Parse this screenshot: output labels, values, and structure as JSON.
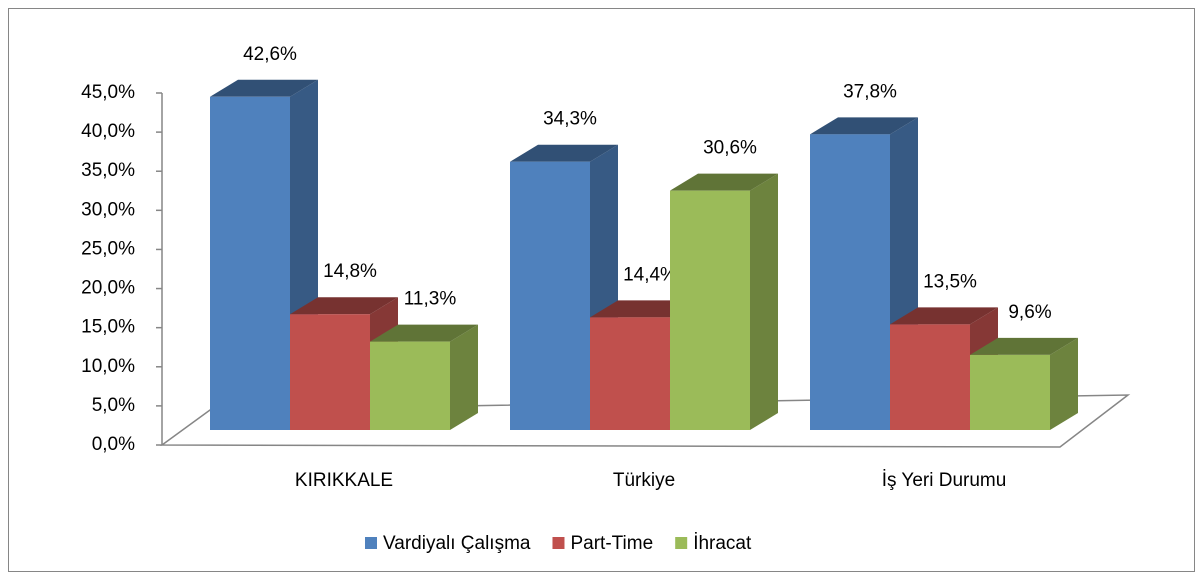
{
  "chart_data": {
    "type": "bar3d",
    "categories": [
      "KIRIKKALE",
      "Türkiye",
      "İş Yeri Durumu"
    ],
    "series": [
      {
        "name": "Vardiyalı Çalışma",
        "color": "#4f81bd",
        "values": [
          42.6,
          34.3,
          37.8
        ],
        "value_labels": [
          "42,6%",
          "34,3%",
          "37,8%"
        ]
      },
      {
        "name": "Part-Time",
        "color": "#c0504d",
        "values": [
          14.8,
          14.4,
          13.5
        ],
        "value_labels": [
          "14,8%",
          "14,4%",
          "13,5%"
        ]
      },
      {
        "name": "İhracat",
        "color": "#9bbb59",
        "values": [
          11.3,
          30.6,
          9.6
        ],
        "value_labels": [
          "11,3%",
          "30,6%",
          "9,6%"
        ]
      }
    ],
    "ylim": [
      0,
      45
    ],
    "yticks": [
      {
        "value": 0,
        "label": "0,0%"
      },
      {
        "value": 5,
        "label": "5,0%"
      },
      {
        "value": 10,
        "label": "10,0%"
      },
      {
        "value": 15,
        "label": "15,0%"
      },
      {
        "value": 20,
        "label": "20,0%"
      },
      {
        "value": 25,
        "label": "25,0%"
      },
      {
        "value": 30,
        "label": "30,0%"
      },
      {
        "value": 35,
        "label": "35,0%"
      },
      {
        "value": 40,
        "label": "40,0%"
      },
      {
        "value": 45,
        "label": "45,0%"
      }
    ],
    "legend": "bottom"
  }
}
